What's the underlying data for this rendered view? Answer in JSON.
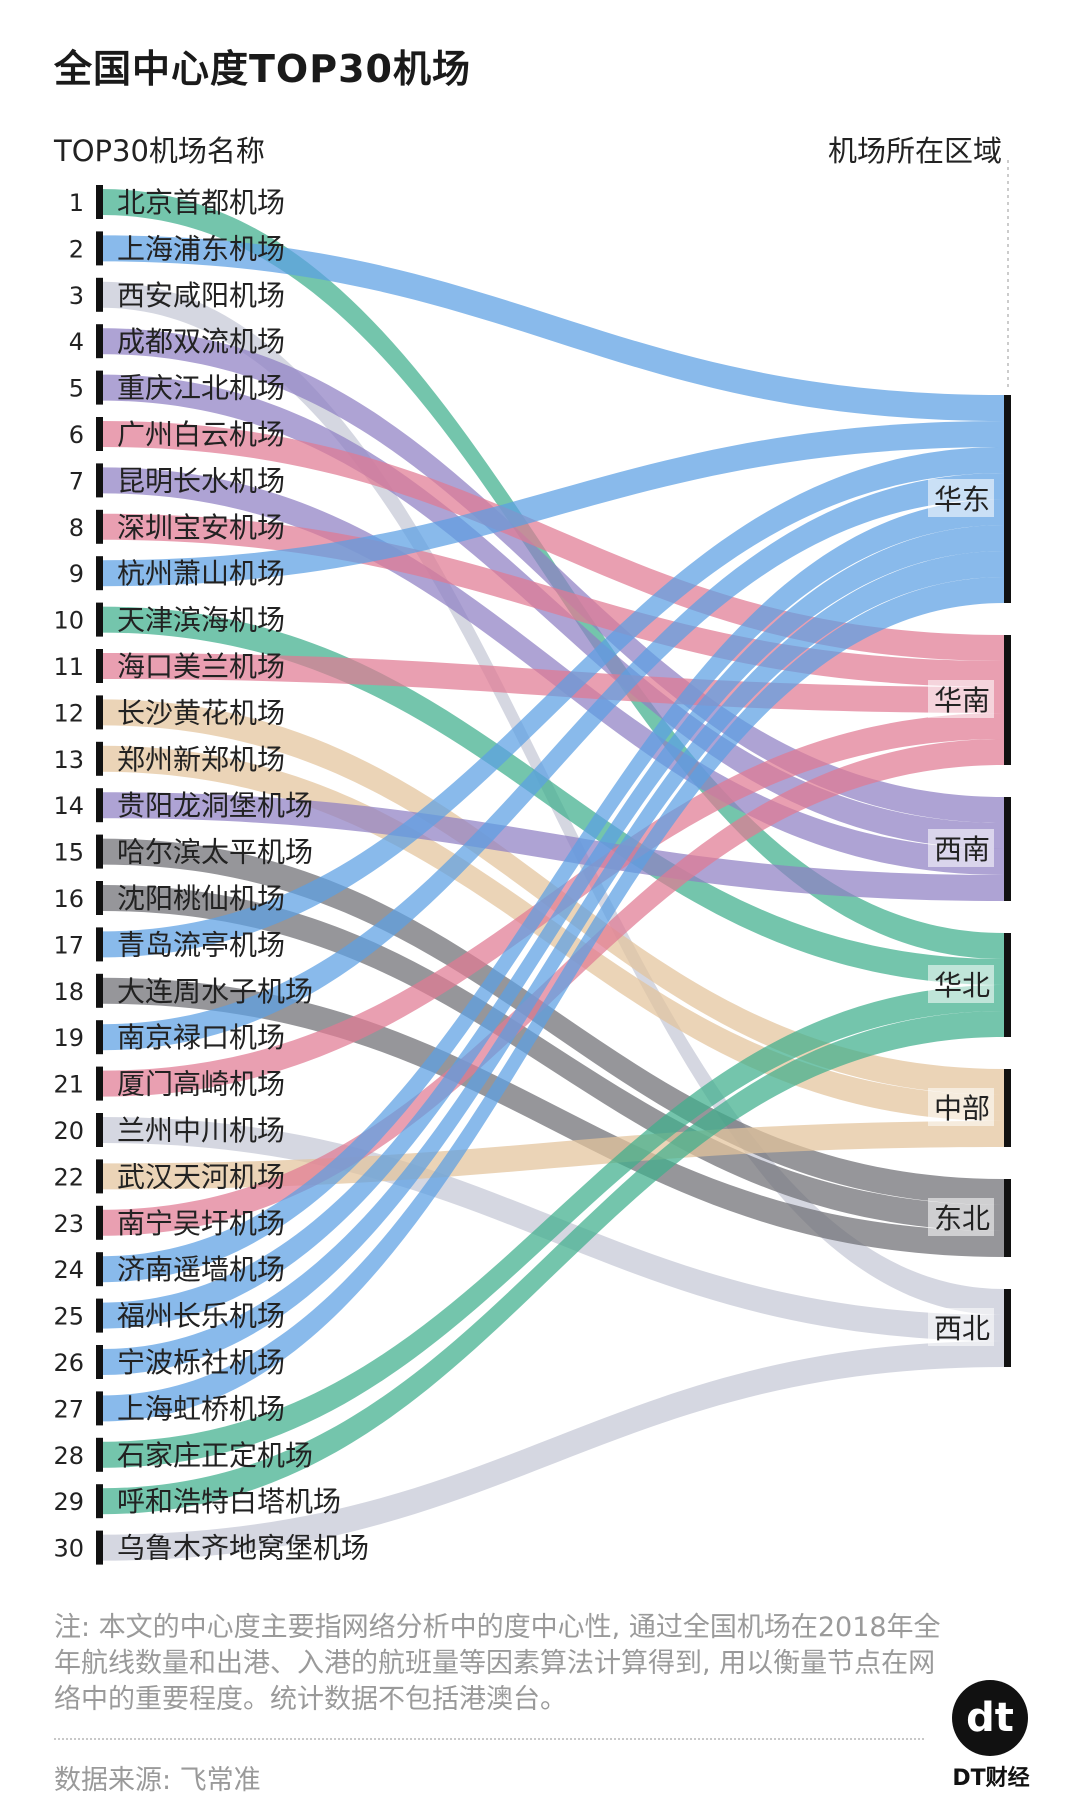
{
  "title": "全国中心度TOP30机场",
  "left_header": "TOP30机场名称",
  "right_header": "机场所在区域",
  "note": "注: 本文的中心度主要指网络分析中的度中心性, 通过全国机场在2018年全年航线数量和出港、入港的航班量等因素算法计算得到, 用以衡量节点在网络中的重要程度。统计数据不包括港澳台。",
  "source": "数据来源: 飞常准",
  "logo": {
    "mark": "dt",
    "text": "DT财经"
  },
  "colors": {
    "华东": "#5b9fe3",
    "华南": "#e07a93",
    "西南": "#8f7fc4",
    "华北": "#3fae8c",
    "中部": "#e3c49b",
    "东北": "#6e6e73",
    "西北": "#c5c7d6"
  },
  "chart_data": {
    "type": "sankey",
    "title": "全国中心度TOP30机场",
    "regions": [
      "华东",
      "华南",
      "西南",
      "华北",
      "中部",
      "东北",
      "西北"
    ],
    "airports": [
      {
        "rank": "1",
        "name": "北京首都机场",
        "region": "华北"
      },
      {
        "rank": "2",
        "name": "上海浦东机场",
        "region": "华东"
      },
      {
        "rank": "3",
        "name": "西安咸阳机场",
        "region": "西北"
      },
      {
        "rank": "4",
        "name": "成都双流机场",
        "region": "西南"
      },
      {
        "rank": "5",
        "name": "重庆江北机场",
        "region": "西南"
      },
      {
        "rank": "6",
        "name": "广州白云机场",
        "region": "华南"
      },
      {
        "rank": "7",
        "name": "昆明长水机场",
        "region": "西南"
      },
      {
        "rank": "8",
        "name": "深圳宝安机场",
        "region": "华南"
      },
      {
        "rank": "9",
        "name": "杭州萧山机场",
        "region": "华东"
      },
      {
        "rank": "10",
        "name": "天津滨海机场",
        "region": "华北"
      },
      {
        "rank": "11",
        "name": "海口美兰机场",
        "region": "华南"
      },
      {
        "rank": "12",
        "name": "长沙黄花机场",
        "region": "中部"
      },
      {
        "rank": "13",
        "name": "郑州新郑机场",
        "region": "中部"
      },
      {
        "rank": "14",
        "name": "贵阳龙洞堡机场",
        "region": "西南"
      },
      {
        "rank": "15",
        "name": "哈尔滨太平机场",
        "region": "东北"
      },
      {
        "rank": "16",
        "name": "沈阳桃仙机场",
        "region": "东北"
      },
      {
        "rank": "17",
        "name": "青岛流亭机场",
        "region": "华东"
      },
      {
        "rank": "18",
        "name": "大连周水子机场",
        "region": "东北"
      },
      {
        "rank": "19",
        "name": "南京禄口机场",
        "region": "华东"
      },
      {
        "rank": "21",
        "name": "厦门高崎机场",
        "region": "华南"
      },
      {
        "rank": "20",
        "name": "兰州中川机场",
        "region": "西北"
      },
      {
        "rank": "22",
        "name": "武汉天河机场",
        "region": "中部"
      },
      {
        "rank": "23",
        "name": "南宁吴圩机场",
        "region": "华南"
      },
      {
        "rank": "24",
        "name": "济南遥墙机场",
        "region": "华东"
      },
      {
        "rank": "25",
        "name": "福州长乐机场",
        "region": "华东"
      },
      {
        "rank": "26",
        "name": "宁波栎社机场",
        "region": "华东"
      },
      {
        "rank": "27",
        "name": "上海虹桥机场",
        "region": "华东"
      },
      {
        "rank": "28",
        "name": "石家庄正定机场",
        "region": "华北"
      },
      {
        "rank": "29",
        "name": "呼和浩特白塔机场",
        "region": "华北"
      },
      {
        "rank": "30",
        "name": "乌鲁木齐地窝堡机场",
        "region": "西北"
      }
    ]
  }
}
